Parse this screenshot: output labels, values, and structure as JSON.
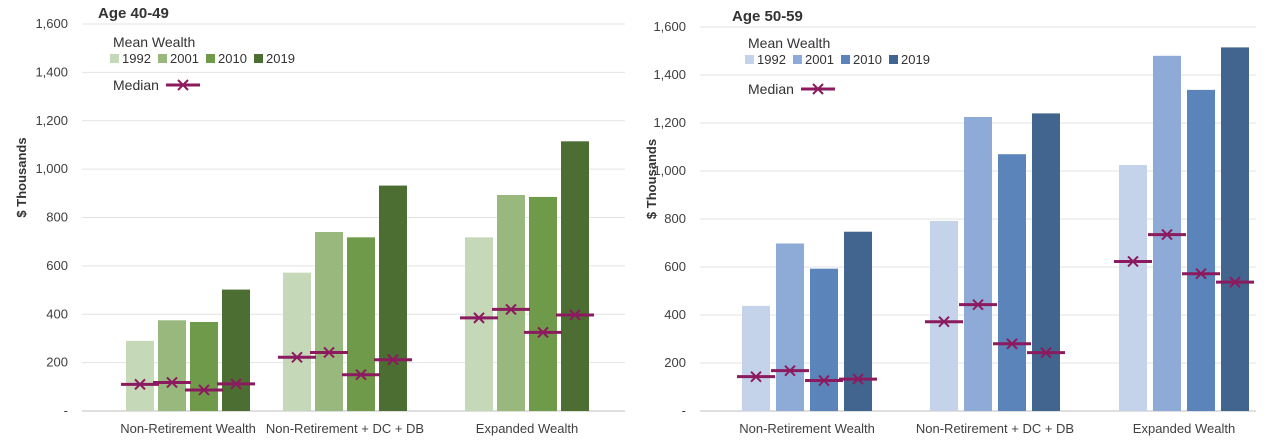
{
  "chart_data": [
    {
      "type": "bar",
      "title": "Age 40-49",
      "ylabel": "$ Thousands",
      "ylim": [
        0,
        1600
      ],
      "yticks": [
        "-",
        "200",
        "400",
        "600",
        "800",
        "1,000",
        "1,200",
        "1,400",
        "1,600"
      ],
      "categories": [
        "Non-Retirement Wealth",
        "Non-Retirement + DC + DB",
        "Expanded Wealth"
      ],
      "legend_title": "Mean Wealth",
      "median_label": "Median",
      "series": [
        {
          "name": "1992",
          "color": "#c5d8b8",
          "values": [
            290,
            572,
            718
          ],
          "median": [
            110,
            222,
            385
          ]
        },
        {
          "name": "2001",
          "color": "#98b87d",
          "values": [
            375,
            740,
            893
          ],
          "median": [
            118,
            242,
            420
          ]
        },
        {
          "name": "2010",
          "color": "#6f9a4a",
          "values": [
            368,
            718,
            885
          ],
          "median": [
            87,
            150,
            325
          ]
        },
        {
          "name": "2019",
          "color": "#4d6e33",
          "values": [
            502,
            932,
            1115
          ],
          "median": [
            112,
            212,
            397
          ]
        }
      ],
      "median_color": "#8b1a5e",
      "grid": true
    },
    {
      "type": "bar",
      "title": "Age 50-59",
      "ylabel": "$ Thousands",
      "ylim": [
        0,
        1600
      ],
      "yticks": [
        "-",
        "200",
        "400",
        "600",
        "800",
        "1,000",
        "1,200",
        "1,400",
        "1,600"
      ],
      "categories": [
        "Non-Retirement Wealth",
        "Non-Retirement + DC + DB",
        "Expanded Wealth"
      ],
      "legend_title": "Mean Wealth",
      "median_label": "Median",
      "series": [
        {
          "name": "1992",
          "color": "#c4d3ea",
          "values": [
            438,
            792,
            1025
          ],
          "median": [
            143,
            372,
            623
          ]
        },
        {
          "name": "2001",
          "color": "#8eaad6",
          "values": [
            698,
            1225,
            1480
          ],
          "median": [
            168,
            443,
            735
          ]
        },
        {
          "name": "2010",
          "color": "#5b85ba",
          "values": [
            593,
            1070,
            1338
          ],
          "median": [
            127,
            280,
            572
          ]
        },
        {
          "name": "2019",
          "color": "#42658f",
          "values": [
            747,
            1240,
            1515
          ],
          "median": [
            133,
            243,
            537
          ]
        }
      ],
      "median_color": "#8b1a5e",
      "grid": true
    }
  ]
}
